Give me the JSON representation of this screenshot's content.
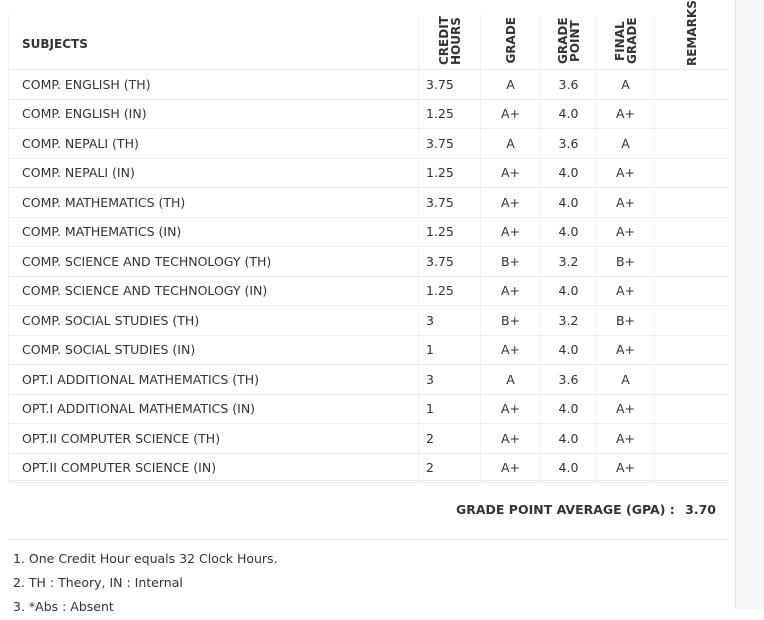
{
  "table": {
    "headers": [
      "SUBJECTS",
      "CREDIT HOURS",
      "GRADE",
      "GRADE POINT",
      "FINAL GRADE",
      "REMARKS"
    ],
    "rows": [
      [
        "COMP. ENGLISH (TH)",
        "3.75",
        "A",
        "3.6",
        "A"
      ],
      [
        "COMP. ENGLISH (IN)",
        "1.25",
        "A+",
        "4.0",
        "A+"
      ],
      [
        "COMP. NEPALI (TH)",
        "3.75",
        "A",
        "3.6",
        "A"
      ],
      [
        "COMP. NEPALI (IN)",
        "1.25",
        "A+",
        "4.0",
        "A+"
      ],
      [
        "COMP. MATHEMATICS (TH)",
        "3.75",
        "A+",
        "4.0",
        "A+"
      ],
      [
        "COMP. MATHEMATICS (IN)",
        "1.25",
        "A+",
        "4.0",
        "A+"
      ],
      [
        "COMP. SCIENCE AND TECHNOLOGY (TH)",
        "3.75",
        "B+",
        "3.2",
        "B+"
      ],
      [
        "COMP. SCIENCE AND TECHNOLOGY (IN)",
        "1.25",
        "A+",
        "4.0",
        "A+"
      ],
      [
        "COMP. SOCIAL STUDIES (TH)",
        "3",
        "B+",
        "3.2",
        "B+"
      ],
      [
        "COMP. SOCIAL STUDIES (IN)",
        "1",
        "A+",
        "4.0",
        "A+"
      ],
      [
        "OPT.I ADDITIONAL MATHEMATICS (TH)",
        "3",
        "A",
        "3.6",
        "A"
      ],
      [
        "OPT.I ADDITIONAL MATHEMATICS (IN)",
        "1",
        "A+",
        "4.0",
        "A+"
      ],
      [
        "OPT.II COMPUTER SCIENCE (TH)",
        "2",
        "A+",
        "4.0",
        "A+"
      ],
      [
        "OPT.II COMPUTER SCIENCE (IN)",
        "2",
        "A+",
        "4.0",
        "A+"
      ]
    ]
  },
  "summary": {
    "gpa_label": "GRADE POINT AVERAGE (GPA) :",
    "gpa": "3.70"
  },
  "notes": [
    "1. One Credit Hour equals 32 Clock Hours.",
    "2. TH : Theory, IN : Internal",
    "3. *Abs : Absent"
  ]
}
